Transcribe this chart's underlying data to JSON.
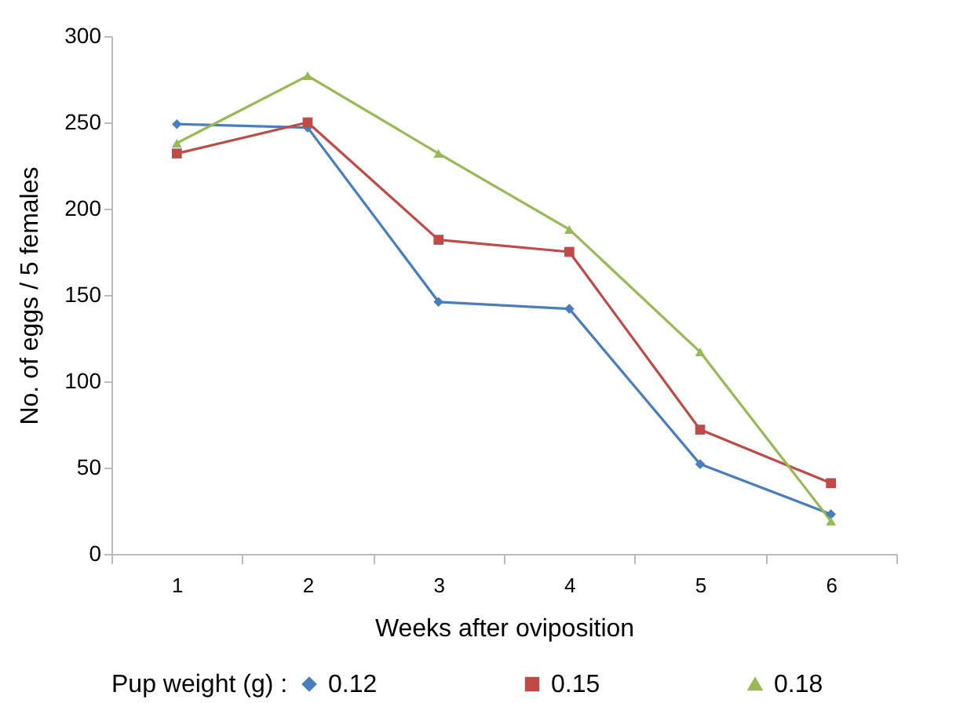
{
  "chart_data": {
    "type": "line",
    "xlabel": "Weeks after oviposition",
    "ylabel": "No. of eggs / 5 females",
    "legend_title": "Pup weight (g) :",
    "legend": "bottom",
    "grid": false,
    "categories": [
      "1",
      "2",
      "3",
      "4",
      "5",
      "6"
    ],
    "ylim": [
      0,
      300
    ],
    "yticks": [
      0,
      50,
      100,
      150,
      200,
      250,
      300
    ],
    "series": [
      {
        "name": "0.12",
        "color": "#4a7ebb",
        "marker": "diamond",
        "values": [
          249,
          247,
          146,
          142,
          52,
          23
        ]
      },
      {
        "name": "0.15",
        "color": "#be4b48",
        "marker": "square",
        "values": [
          232,
          250,
          182,
          175,
          72,
          41
        ]
      },
      {
        "name": "0.18",
        "color": "#98b954",
        "marker": "triangle",
        "values": [
          238,
          277,
          232,
          188,
          117,
          19
        ]
      }
    ]
  }
}
